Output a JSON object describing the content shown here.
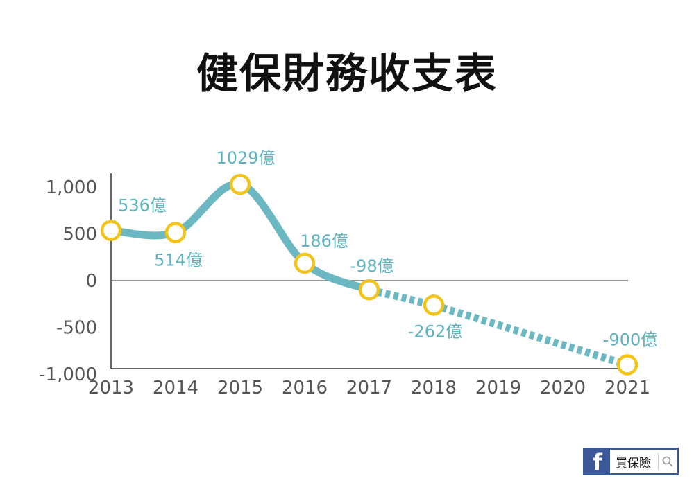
{
  "chart_data": {
    "type": "line",
    "title": "健保財務收支表",
    "categories": [
      "2013",
      "2014",
      "2015",
      "2016",
      "2017",
      "2018",
      "2019",
      "2020",
      "2021"
    ],
    "series": [
      {
        "values": [
          536,
          514,
          1029,
          186,
          -98,
          -262,
          null,
          null,
          -900
        ],
        "data_labels": [
          "536億",
          "514億",
          "1029億",
          "186億",
          "-98億",
          "-262億",
          "",
          "",
          "-900億"
        ],
        "solid_until_index": 4
      }
    ],
    "ylim": [
      -1000,
      1000
    ],
    "y_ticks": [
      "1,000",
      "500",
      "0",
      "-500",
      "-1,000"
    ],
    "y_tick_values": [
      1000,
      500,
      0,
      -500,
      -1000
    ],
    "line_color": "#6bb8c2",
    "marker_color": "#f2c318",
    "label_color": "#5fb3be",
    "grid": false,
    "legend": "none"
  },
  "badge": {
    "text": "買保險",
    "logo": "f",
    "icon": "search-icon"
  }
}
